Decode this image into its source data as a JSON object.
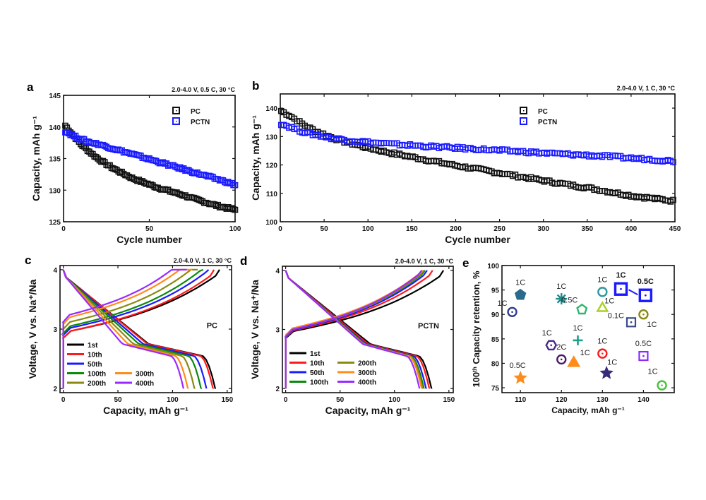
{
  "chart_data": [
    {
      "id": "a",
      "type": "scatter",
      "panel_label": "a",
      "condition": "2.0-4.0 V, 0.5 C, 30 °C",
      "xlabel": "Cycle number",
      "ylabel": "Capacity, mAh g⁻¹",
      "xlim": [
        0,
        100
      ],
      "ylim": [
        125,
        145
      ],
      "xticks": [
        0,
        50,
        100
      ],
      "yticks": [
        125,
        130,
        135,
        140,
        145
      ],
      "legend_position": "top-right",
      "series": [
        {
          "name": "PC",
          "color": "#111111",
          "x": [
            1,
            5,
            10,
            15,
            20,
            25,
            30,
            35,
            40,
            45,
            50,
            55,
            60,
            65,
            70,
            75,
            80,
            85,
            90,
            95,
            100
          ],
          "y": [
            140.2,
            138.9,
            137.3,
            136.1,
            135.0,
            134.1,
            133.3,
            132.6,
            131.9,
            131.4,
            130.9,
            130.4,
            130.0,
            129.6,
            129.2,
            128.7,
            128.3,
            127.9,
            127.5,
            127.2,
            126.9
          ]
        },
        {
          "name": "PCTN",
          "color": "#1a1aff",
          "x": [
            1,
            5,
            10,
            15,
            20,
            25,
            30,
            35,
            40,
            45,
            50,
            55,
            60,
            65,
            70,
            75,
            80,
            85,
            90,
            95,
            100
          ],
          "y": [
            139.3,
            138.7,
            138.1,
            137.6,
            137.3,
            136.9,
            136.5,
            136.1,
            135.7,
            135.3,
            134.9,
            134.5,
            134.1,
            133.7,
            133.3,
            132.9,
            132.5,
            132.1,
            131.7,
            131.3,
            130.8
          ]
        }
      ]
    },
    {
      "id": "b",
      "type": "scatter",
      "panel_label": "b",
      "condition": "2.0-4.0 V, 1 C, 30 °C",
      "xlabel": "Cycle number",
      "ylabel": "Capacity, mAh g⁻¹",
      "xlim": [
        0,
        450
      ],
      "ylim": [
        100,
        145
      ],
      "xticks": [
        0,
        50,
        100,
        150,
        200,
        250,
        300,
        350,
        400,
        450
      ],
      "yticks": [
        100,
        110,
        120,
        130,
        140
      ],
      "legend_position": "top-right",
      "series": [
        {
          "name": "PC",
          "color": "#111111",
          "x": [
            1,
            10,
            20,
            30,
            40,
            50,
            60,
            75,
            100,
            125,
            150,
            175,
            200,
            225,
            250,
            275,
            300,
            325,
            350,
            375,
            400,
            425,
            450
          ],
          "y": [
            139,
            137.5,
            135.5,
            133.5,
            132,
            130.8,
            129.5,
            128,
            126,
            124.3,
            122.8,
            121.3,
            119.8,
            118.5,
            117.2,
            115.8,
            114.5,
            113.2,
            112,
            110.6,
            109.2,
            108.2,
            107.3
          ]
        },
        {
          "name": "PCTN",
          "color": "#1a1aff",
          "x": [
            1,
            10,
            20,
            30,
            40,
            50,
            60,
            75,
            100,
            125,
            150,
            175,
            200,
            225,
            250,
            275,
            300,
            325,
            350,
            375,
            400,
            425,
            450
          ],
          "y": [
            134.5,
            133.5,
            132.3,
            131.3,
            130.6,
            130,
            129.4,
            128.8,
            128,
            127.4,
            126.9,
            126.4,
            126,
            125.6,
            125.1,
            124.7,
            124.2,
            123.8,
            123.4,
            123,
            122.4,
            121.9,
            121.3
          ]
        }
      ]
    },
    {
      "id": "c",
      "type": "line",
      "panel_label": "c",
      "condition": "2.0-4.0 V, 1 C, 30 °C",
      "annotation": "PC",
      "xlabel": "Capacity, mAh g⁻¹",
      "ylabel": "Voltage, V vs. Na⁺/Na",
      "xlim": [
        -3,
        154
      ],
      "ylim": [
        1.93,
        4.07
      ],
      "xticks": [
        0,
        50,
        100,
        150
      ],
      "yticks": [
        2,
        3,
        4
      ],
      "legend_position": "bottom-left",
      "series": [
        {
          "name": "1st",
          "color": "#000000",
          "charge_cap": 143,
          "charge_v0": 2.85,
          "discharge_cap": 139,
          "dis_shift": 0
        },
        {
          "name": "10th",
          "color": "#ff1a1a",
          "charge_cap": 138,
          "charge_v0": 2.85,
          "discharge_cap": 137,
          "dis_shift": -1
        },
        {
          "name": "50th",
          "color": "#1a1aff",
          "charge_cap": 133,
          "charge_v0": 2.9,
          "discharge_cap": 131,
          "dis_shift": -5
        },
        {
          "name": "100th",
          "color": "#0a8a0a",
          "charge_cap": 128,
          "charge_v0": 2.93,
          "discharge_cap": 126,
          "dis_shift": -9
        },
        {
          "name": "200th",
          "color": "#8a8a10",
          "charge_cap": 123,
          "charge_v0": 3.0,
          "discharge_cap": 120,
          "dis_shift": -14
        },
        {
          "name": "300th",
          "color": "#ff8c1a",
          "charge_cap": 118,
          "charge_v0": 3.08,
          "discharge_cap": 114,
          "dis_shift": -19
        },
        {
          "name": "400th",
          "color": "#9a2aff",
          "charge_cap": 113,
          "charge_v0": 3.12,
          "discharge_cap": 110,
          "dis_shift": -24
        }
      ]
    },
    {
      "id": "d",
      "type": "line",
      "panel_label": "d",
      "condition": "2.0-4.0 V, 1 C, 30 °C",
      "annotation": "PCTN",
      "xlabel": "Capacity, mAh g⁻¹",
      "ylabel": "Voltage, V vs. Na⁺/Na",
      "xlim": [
        -3,
        154
      ],
      "ylim": [
        1.93,
        4.07
      ],
      "xticks": [
        0,
        50,
        100,
        150
      ],
      "yticks": [
        2,
        3,
        4
      ],
      "legend_position": "bottom-left",
      "series": [
        {
          "name": "1st",
          "color": "#000000",
          "charge_cap": 145,
          "charge_v0": 2.85,
          "discharge_cap": 134,
          "dis_shift": 0
        },
        {
          "name": "10th",
          "color": "#ff1a1a",
          "charge_cap": 135,
          "charge_v0": 2.86,
          "discharge_cap": 132,
          "dis_shift": -2
        },
        {
          "name": "50th",
          "color": "#1a1aff",
          "charge_cap": 130,
          "charge_v0": 2.87,
          "discharge_cap": 129,
          "dis_shift": -4
        },
        {
          "name": "100th",
          "color": "#0a8a0a",
          "charge_cap": 128,
          "charge_v0": 2.88,
          "discharge_cap": 127,
          "dis_shift": -5
        },
        {
          "name": "200th",
          "color": "#8a8a10",
          "charge_cap": 127,
          "charge_v0": 2.88,
          "discharge_cap": 126,
          "dis_shift": -6
        },
        {
          "name": "300th",
          "color": "#ff8c1a",
          "charge_cap": 126,
          "charge_v0": 2.9,
          "discharge_cap": 125,
          "dis_shift": -6.5
        },
        {
          "name": "400th",
          "color": "#9a2aff",
          "charge_cap": 125,
          "charge_v0": 2.88,
          "discharge_cap": 123,
          "dis_shift": -7
        }
      ]
    },
    {
      "id": "e",
      "type": "scatter",
      "panel_label": "e",
      "xlabel": "Capacity, mAh g⁻¹",
      "ylabel": "100th Capacity retention, %",
      "ylabel_sup": "th",
      "xlim": [
        105.5,
        147.5
      ],
      "ylim": [
        74,
        100
      ],
      "xticks": [
        110,
        120,
        130,
        140
      ],
      "yticks": [
        75,
        80,
        85,
        90,
        95,
        100
      ],
      "points": [
        {
          "x": 108,
          "y": 90.5,
          "label": "1C",
          "marker": "circle-dot",
          "color": "#2e3d8c"
        },
        {
          "x": 110,
          "y": 94,
          "label": "1C",
          "marker": "pentagon-filled",
          "color": "#2a6a8a"
        },
        {
          "x": 110,
          "y": 77,
          "label": "0.5C",
          "marker": "star",
          "color": "#ff8c1a"
        },
        {
          "x": 117.5,
          "y": 83.7,
          "label": "1C",
          "marker": "hexagon",
          "color": "#4a2a8a"
        },
        {
          "x": 120,
          "y": 93.2,
          "label": "1C",
          "marker": "asterisk",
          "color": "#1a8a8a"
        },
        {
          "x": 120,
          "y": 80.8,
          "label": "2C",
          "marker": "circle-dot",
          "color": "#4a1a6a"
        },
        {
          "x": 123,
          "y": 80.2,
          "label": "1C",
          "marker": "triangle-filled",
          "color": "#ff8c1a"
        },
        {
          "x": 124,
          "y": 84.7,
          "label": "1C",
          "marker": "plus",
          "color": "#1aa08a"
        },
        {
          "x": 125,
          "y": 91,
          "label": "0.5C",
          "marker": "pentagon",
          "color": "#2ab86a"
        },
        {
          "x": 130,
          "y": 94.6,
          "label": "1C",
          "marker": "circle",
          "color": "#2a9aa0"
        },
        {
          "x": 130,
          "y": 91.4,
          "label": "1C",
          "marker": "triangle",
          "color": "#a8d020"
        },
        {
          "x": 130,
          "y": 82,
          "label": "1C",
          "marker": "circle-dot",
          "color": "#ff1a1a"
        },
        {
          "x": 131,
          "y": 78,
          "label": "1C",
          "marker": "star",
          "color": "#3a2a7a"
        },
        {
          "x": 134.5,
          "y": 95.2,
          "label": "1C",
          "marker": "square-dot",
          "color": "#1a1aff",
          "bold": true
        },
        {
          "x": 140.5,
          "y": 93.9,
          "label": "0.5C",
          "marker": "square-dot",
          "color": "#1a1aff",
          "bold": true
        },
        {
          "x": 137,
          "y": 88.4,
          "label": "0.1C",
          "marker": "square-dot",
          "color": "#3a4a8a"
        },
        {
          "x": 140,
          "y": 90,
          "label": "1C",
          "marker": "circle-dot",
          "color": "#8a8a10"
        },
        {
          "x": 140,
          "y": 81.5,
          "label": "0.5C",
          "marker": "square-dot",
          "color": "#8a2aff"
        },
        {
          "x": 144.5,
          "y": 75.5,
          "label": "1C",
          "marker": "circle-dot",
          "color": "#4ac040"
        }
      ]
    }
  ]
}
